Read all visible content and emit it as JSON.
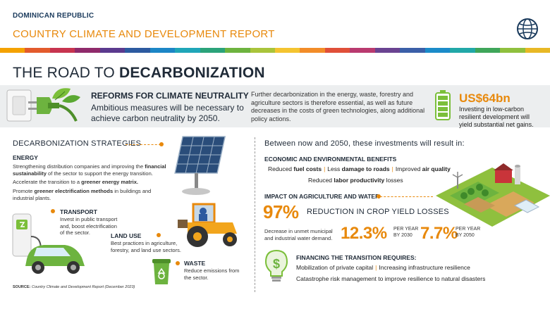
{
  "header": {
    "country": "DOMINICAN REPUBLIC",
    "report": "COUNTRY CLIMATE AND DEVELOPMENT REPORT"
  },
  "title": {
    "light": "THE ROAD TO ",
    "bold": "DECARBONIZATION"
  },
  "banner": {
    "reforms_title": "REFORMS FOR CLIMATE NEUTRALITY",
    "reforms_text": "Ambitious measures will be necessary to achieve carbon neutrality by 2050.",
    "further_text": "Further decarbonization in the energy, waste, forestry and agriculture sectors is therefore essential, as well as future decreases in the costs of green technologies, along additional policy actions.",
    "amount": "US$64bn",
    "amount_text": "Investing in low-carbon resilient development will yield substantial net gains."
  },
  "strategies": {
    "title": "DECARBONIZATION STRATEGIES",
    "energy": {
      "label": "ENERGY",
      "p1_a": "Strengthening distribution companies and improving the ",
      "p1_b": "financial sustainability",
      "p1_c": " of the sector to support the energy transition.",
      "p2_a": "Accelerate the transition to a ",
      "p2_b": "greener energy matrix.",
      "p3_a": "Promote ",
      "p3_b": "greener electrification methods",
      "p3_c": " in buildings and industrial plants."
    },
    "transport": {
      "label": "TRANSPORT",
      "text": "Invest in public transport and, boost electrification of the sector."
    },
    "land_use": {
      "label": "LAND USE",
      "text": "Best practices in agriculture, forestry, and land use sectors."
    },
    "waste": {
      "label": "WASTE",
      "text": "Reduce emissions from the sector."
    },
    "source_label": "SOURCE:",
    "source_text": "Country Climate and Development Report (December 2023)"
  },
  "results": {
    "title": "Between now and 2050, these investments will result in:",
    "econ_title": "ECONOMIC AND ENVIRONMENTAL BENEFITS",
    "econ_row1": [
      "Reduced ",
      "fuel costs",
      "Less ",
      "damage to roads",
      "Improved ",
      "air quality"
    ],
    "econ_row2": [
      "Reduced ",
      "labor productivity",
      " losses"
    ],
    "agri_title": "IMPACT ON AGRICULTURE AND WATER",
    "crop_pct": "97%",
    "crop_text": "REDUCTION IN CROP YIELD LOSSES",
    "water_text": "Decrease in unmet municipal and industrial water demand.",
    "pct2030": "12.3%",
    "per2030": "PER YEAR BY 2030",
    "pct2050": "7.7%",
    "per2050": "PER YEAR BY 2050",
    "fin_title": "FINANCING THE TRANSITION REQUIRES:",
    "fin_row1_a": "Mobilization of private capital",
    "fin_row1_b": "Increasing infrastructure resilience",
    "fin_row2": "Catastrophe risk management to improve resilience to natural disasters"
  },
  "colors": {
    "accent": "#e8890c",
    "navy": "#1f2a37",
    "green": "#7bbf3a"
  },
  "rainbow": [
    "#f4a200",
    "#e35b2c",
    "#c7344f",
    "#8f2a6b",
    "#5b3a8e",
    "#2c5aa0",
    "#1c86c6",
    "#1fa6b8",
    "#2ba37a",
    "#6db33f",
    "#a9c43b",
    "#f4c430",
    "#f28c28",
    "#e04f39",
    "#b93a6f",
    "#6a4391",
    "#3b5fa8",
    "#1b8bc9",
    "#21a8a8",
    "#3fa65a",
    "#8fc03e",
    "#e8b825"
  ]
}
